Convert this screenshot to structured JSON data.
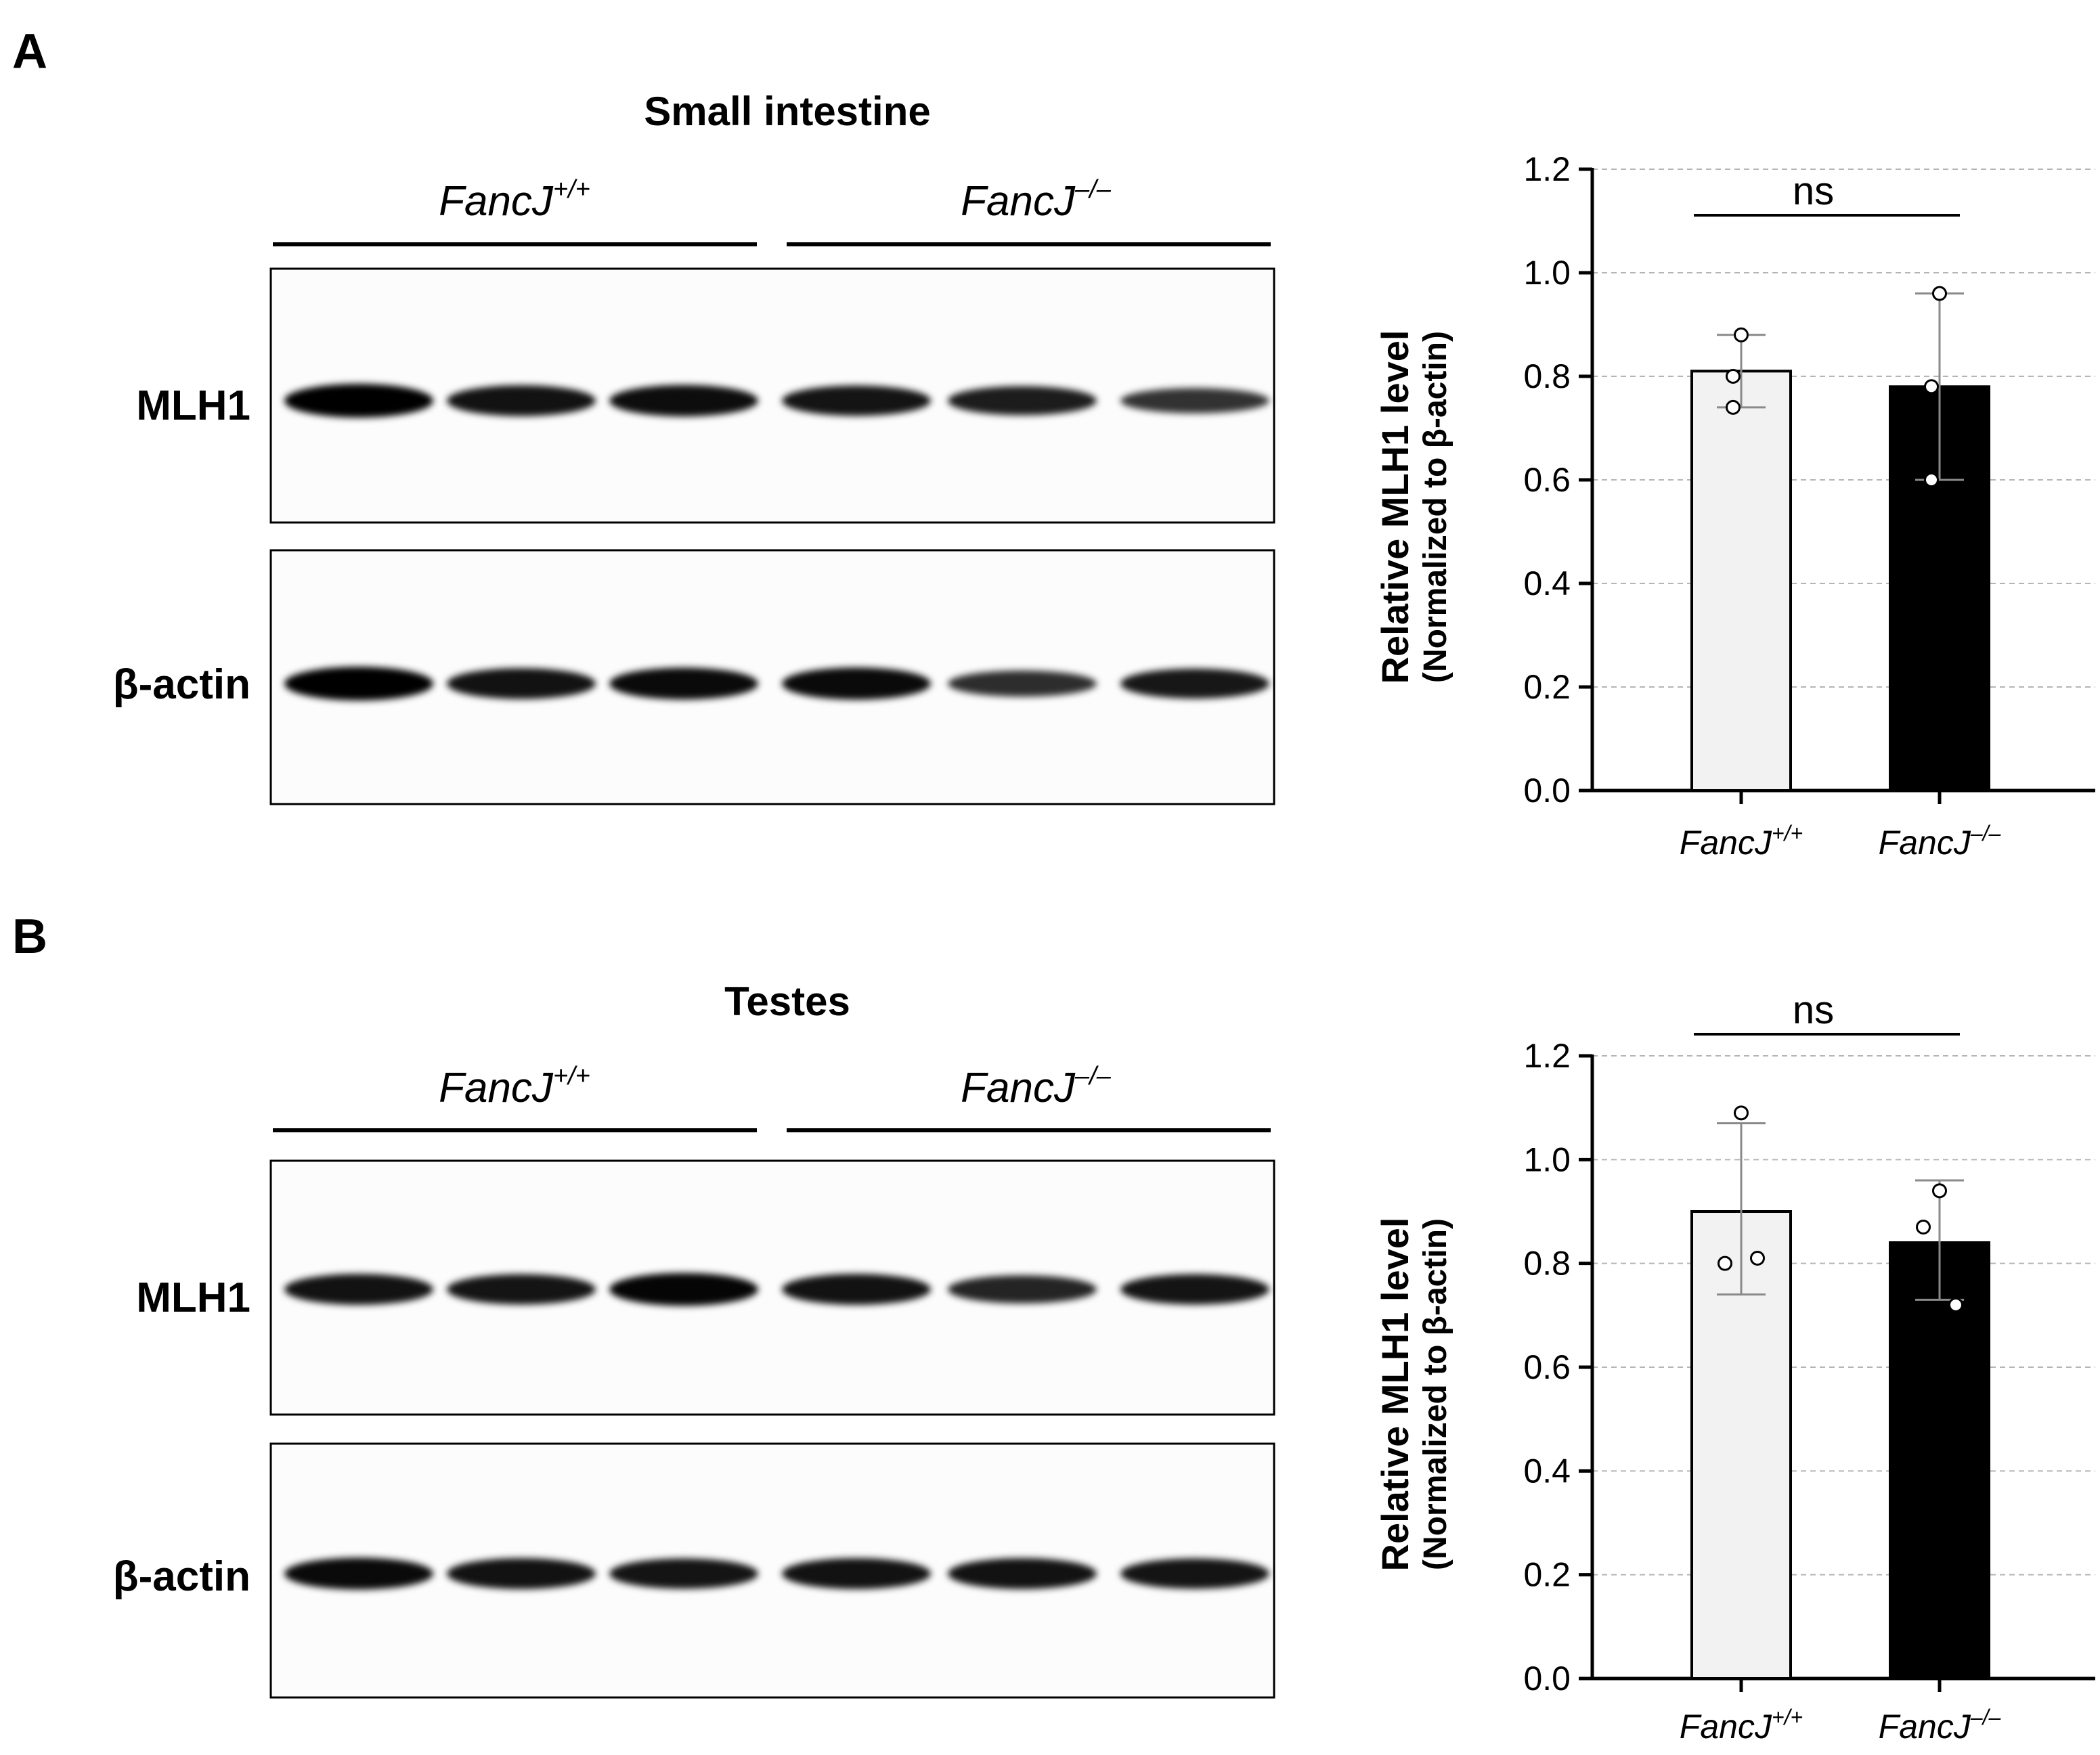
{
  "panels": {
    "A": {
      "letter": "A",
      "tissue": "Small intestine",
      "blot": {
        "groups": [
          {
            "base": "FancJ",
            "sup": "+/+"
          },
          {
            "base": "FancJ",
            "sup": "–/–"
          }
        ],
        "rows": [
          {
            "label": "MLH1",
            "band_intensity": [
              1.0,
              0.85,
              0.88,
              0.82,
              0.75,
              0.55
            ]
          },
          {
            "label": "β-actin",
            "band_intensity": [
              1.0,
              0.85,
              0.9,
              0.92,
              0.6,
              0.8
            ]
          }
        ]
      }
    },
    "B": {
      "letter": "B",
      "tissue": "Testes",
      "blot": {
        "groups": [
          {
            "base": "FancJ",
            "sup": "+/+"
          },
          {
            "base": "FancJ",
            "sup": "–/–"
          }
        ],
        "rows": [
          {
            "label": "MLH1",
            "band_intensity": [
              0.85,
              0.82,
              0.95,
              0.85,
              0.7,
              0.82
            ]
          },
          {
            "label": "β-actin",
            "band_intensity": [
              0.9,
              0.85,
              0.82,
              0.85,
              0.85,
              0.82
            ]
          }
        ]
      }
    }
  },
  "chart_data": [
    {
      "type": "bar",
      "panel": "A",
      "categories": [
        {
          "base": "FancJ",
          "sup": "+/+"
        },
        {
          "base": "FancJ",
          "sup": "–/–"
        }
      ],
      "values": [
        0.81,
        0.78
      ],
      "error_upper": [
        0.88,
        0.96
      ],
      "error_lower": [
        0.74,
        0.6
      ],
      "points": [
        [
          0.88,
          0.8,
          0.74
        ],
        [
          0.96,
          0.78,
          0.6
        ]
      ],
      "bar_colors": [
        "#f2f2f2",
        "#000000"
      ],
      "point_colors": [
        "#ffffff",
        "#ffffff"
      ],
      "ylabel": "Relative MLH1 level",
      "ylabel2": "(Normalized to β-actin)",
      "yticks": [
        "0.0",
        "0.2",
        "0.4",
        "0.6",
        "0.8",
        "1.0",
        "1.2"
      ],
      "ylim": [
        0,
        1.2
      ],
      "grid": true,
      "annotation": "ns"
    },
    {
      "type": "bar",
      "panel": "B",
      "categories": [
        {
          "base": "FancJ",
          "sup": "+/+"
        },
        {
          "base": "FancJ",
          "sup": "–/–"
        }
      ],
      "values": [
        0.9,
        0.84
      ],
      "error_upper": [
        1.07,
        0.96
      ],
      "error_lower": [
        0.74,
        0.73
      ],
      "points": [
        [
          1.09,
          0.8,
          0.81
        ],
        [
          0.94,
          0.87,
          0.72
        ]
      ],
      "bar_colors": [
        "#f2f2f2",
        "#000000"
      ],
      "point_colors": [
        "#ffffff",
        "#ffffff"
      ],
      "ylabel": "Relative MLH1 level",
      "ylabel2": "(Normalized to β-actin)",
      "yticks": [
        "0.0",
        "0.2",
        "0.4",
        "0.6",
        "0.8",
        "1.0",
        "1.2"
      ],
      "ylim": [
        0,
        1.2
      ],
      "grid": true,
      "annotation": "ns"
    }
  ]
}
